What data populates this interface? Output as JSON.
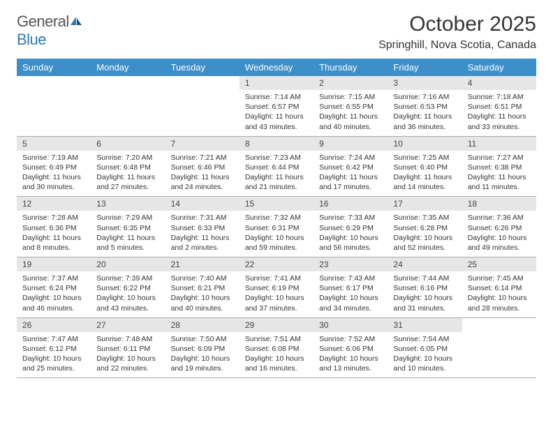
{
  "brand": {
    "name_part1": "General",
    "name_part2": "Blue"
  },
  "title": "October 2025",
  "location": "Springhill, Nova Scotia, Canada",
  "colors": {
    "header_bg": "#3d8fc9",
    "divider": "#2a7ab8",
    "daynum_bg": "#e6e6e6",
    "text": "#333333",
    "border": "#aaaaaa"
  },
  "day_headers": [
    "Sunday",
    "Monday",
    "Tuesday",
    "Wednesday",
    "Thursday",
    "Friday",
    "Saturday"
  ],
  "weeks": [
    [
      null,
      null,
      null,
      {
        "n": "1",
        "sr": "7:14 AM",
        "ss": "6:57 PM",
        "d": "11 hours and 43 minutes."
      },
      {
        "n": "2",
        "sr": "7:15 AM",
        "ss": "6:55 PM",
        "d": "11 hours and 40 minutes."
      },
      {
        "n": "3",
        "sr": "7:16 AM",
        "ss": "6:53 PM",
        "d": "11 hours and 36 minutes."
      },
      {
        "n": "4",
        "sr": "7:18 AM",
        "ss": "6:51 PM",
        "d": "11 hours and 33 minutes."
      }
    ],
    [
      {
        "n": "5",
        "sr": "7:19 AM",
        "ss": "6:49 PM",
        "d": "11 hours and 30 minutes."
      },
      {
        "n": "6",
        "sr": "7:20 AM",
        "ss": "6:48 PM",
        "d": "11 hours and 27 minutes."
      },
      {
        "n": "7",
        "sr": "7:21 AM",
        "ss": "6:46 PM",
        "d": "11 hours and 24 minutes."
      },
      {
        "n": "8",
        "sr": "7:23 AM",
        "ss": "6:44 PM",
        "d": "11 hours and 21 minutes."
      },
      {
        "n": "9",
        "sr": "7:24 AM",
        "ss": "6:42 PM",
        "d": "11 hours and 17 minutes."
      },
      {
        "n": "10",
        "sr": "7:25 AM",
        "ss": "6:40 PM",
        "d": "11 hours and 14 minutes."
      },
      {
        "n": "11",
        "sr": "7:27 AM",
        "ss": "6:38 PM",
        "d": "11 hours and 11 minutes."
      }
    ],
    [
      {
        "n": "12",
        "sr": "7:28 AM",
        "ss": "6:36 PM",
        "d": "11 hours and 8 minutes."
      },
      {
        "n": "13",
        "sr": "7:29 AM",
        "ss": "6:35 PM",
        "d": "11 hours and 5 minutes."
      },
      {
        "n": "14",
        "sr": "7:31 AM",
        "ss": "6:33 PM",
        "d": "11 hours and 2 minutes."
      },
      {
        "n": "15",
        "sr": "7:32 AM",
        "ss": "6:31 PM",
        "d": "10 hours and 59 minutes."
      },
      {
        "n": "16",
        "sr": "7:33 AM",
        "ss": "6:29 PM",
        "d": "10 hours and 56 minutes."
      },
      {
        "n": "17",
        "sr": "7:35 AM",
        "ss": "6:28 PM",
        "d": "10 hours and 52 minutes."
      },
      {
        "n": "18",
        "sr": "7:36 AM",
        "ss": "6:26 PM",
        "d": "10 hours and 49 minutes."
      }
    ],
    [
      {
        "n": "19",
        "sr": "7:37 AM",
        "ss": "6:24 PM",
        "d": "10 hours and 46 minutes."
      },
      {
        "n": "20",
        "sr": "7:39 AM",
        "ss": "6:22 PM",
        "d": "10 hours and 43 minutes."
      },
      {
        "n": "21",
        "sr": "7:40 AM",
        "ss": "6:21 PM",
        "d": "10 hours and 40 minutes."
      },
      {
        "n": "22",
        "sr": "7:41 AM",
        "ss": "6:19 PM",
        "d": "10 hours and 37 minutes."
      },
      {
        "n": "23",
        "sr": "7:43 AM",
        "ss": "6:17 PM",
        "d": "10 hours and 34 minutes."
      },
      {
        "n": "24",
        "sr": "7:44 AM",
        "ss": "6:16 PM",
        "d": "10 hours and 31 minutes."
      },
      {
        "n": "25",
        "sr": "7:45 AM",
        "ss": "6:14 PM",
        "d": "10 hours and 28 minutes."
      }
    ],
    [
      {
        "n": "26",
        "sr": "7:47 AM",
        "ss": "6:12 PM",
        "d": "10 hours and 25 minutes."
      },
      {
        "n": "27",
        "sr": "7:48 AM",
        "ss": "6:11 PM",
        "d": "10 hours and 22 minutes."
      },
      {
        "n": "28",
        "sr": "7:50 AM",
        "ss": "6:09 PM",
        "d": "10 hours and 19 minutes."
      },
      {
        "n": "29",
        "sr": "7:51 AM",
        "ss": "6:08 PM",
        "d": "10 hours and 16 minutes."
      },
      {
        "n": "30",
        "sr": "7:52 AM",
        "ss": "6:06 PM",
        "d": "10 hours and 13 minutes."
      },
      {
        "n": "31",
        "sr": "7:54 AM",
        "ss": "6:05 PM",
        "d": "10 hours and 10 minutes."
      },
      null
    ]
  ],
  "labels": {
    "sunrise": "Sunrise:",
    "sunset": "Sunset:",
    "daylight": "Daylight:"
  }
}
